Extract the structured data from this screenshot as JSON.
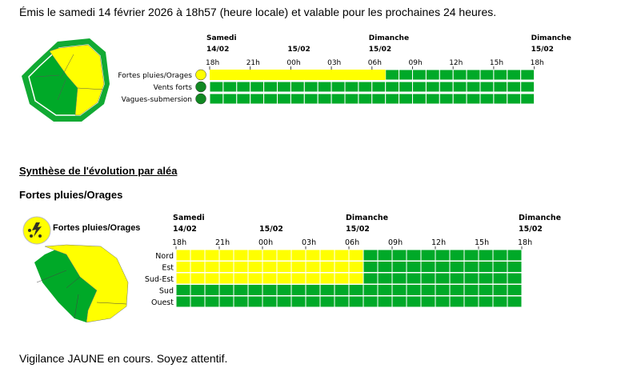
{
  "header": {
    "emission": "Émis le samedi 14 février 2026 à 18h57 (heure locale) et valable pour les prochaines 24 heures."
  },
  "colors": {
    "yellow": "#ffff00",
    "green": "#00a928",
    "border": "#11aa33"
  },
  "timeline": {
    "days": [
      {
        "name": "Samedi",
        "date": "14/02",
        "hour": 0
      },
      {
        "name": "",
        "date": "15/02",
        "hour": 6
      },
      {
        "name": "Dimanche",
        "date": "15/02",
        "hour": 12
      },
      {
        "name": "Dimanche",
        "date": "15/02",
        "hour": 24
      }
    ],
    "hour_labels": [
      "18h",
      "21h",
      "00h",
      "03h",
      "06h",
      "09h",
      "12h",
      "15h",
      "18h"
    ]
  },
  "overview": {
    "rows": [
      {
        "label": "Fortes pluies/Orages",
        "icon": "rain-storm-icon",
        "yellow_hours": 13
      },
      {
        "label": "Vents forts",
        "icon": "wind-icon",
        "yellow_hours": 0
      },
      {
        "label": "Vagues-submersion",
        "icon": "waves-icon",
        "yellow_hours": 0
      }
    ]
  },
  "synthese": {
    "title": "Synthèse de l'évolution par aléa",
    "hazard": "Fortes pluies/Orages",
    "legend": "Fortes pluies/Orages",
    "rows": [
      {
        "label": "Nord",
        "yellow_hours": 13
      },
      {
        "label": "Est",
        "yellow_hours": 13
      },
      {
        "label": "Sud-Est",
        "yellow_hours": 13
      },
      {
        "label": "Sud",
        "yellow_hours": 0
      },
      {
        "label": "Ouest",
        "yellow_hours": 0
      }
    ]
  },
  "footer": {
    "text": "Vigilance JAUNE en cours. Soyez attentif."
  }
}
